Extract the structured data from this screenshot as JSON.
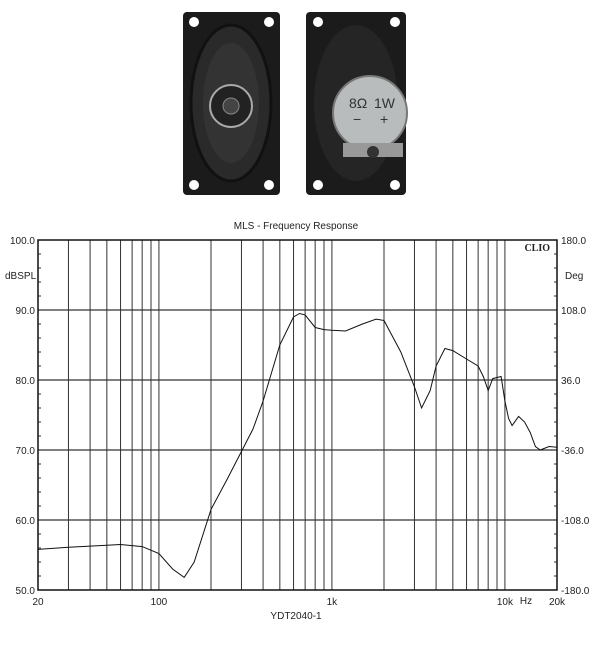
{
  "photo": {
    "label_impedance": "8Ω",
    "label_power": "1W",
    "label_minus": "−",
    "label_plus": "+"
  },
  "chart_data": {
    "type": "line",
    "title": "MLS - Frequency Response",
    "xlabel": "YDT2040-1",
    "x_unit": "Hz",
    "ylabel": "dBSPL",
    "y2label": "Deg",
    "brand": "CLIO",
    "xscale": "log",
    "xlim": [
      20,
      20000
    ],
    "ylim": [
      50,
      100
    ],
    "y2lim": [
      -180,
      180
    ],
    "grid": true,
    "xticks": [
      {
        "v": 20,
        "label": "20"
      },
      {
        "v": 100,
        "label": "100"
      },
      {
        "v": 1000,
        "label": "1k"
      },
      {
        "v": 10000,
        "label": "10k"
      },
      {
        "v": 20000,
        "label": "20k"
      }
    ],
    "yticks": [
      "50.0",
      "60.0",
      "70.0",
      "80.0",
      "90.0",
      "100.0"
    ],
    "y2ticks": [
      "-180.0",
      "-108.0",
      "-36.0",
      "36.0",
      "108.0",
      "180.0"
    ],
    "series": [
      {
        "x": [
          20,
          30,
          50,
          60,
          80,
          100,
          120,
          140,
          160,
          200,
          250,
          300,
          350,
          400,
          500,
          600,
          650,
          700,
          800,
          900,
          1000,
          1200,
          1500,
          1800,
          2000,
          2500,
          3000,
          3300,
          3700,
          4000,
          4500,
          5000,
          6000,
          7000,
          7500,
          8000,
          8500,
          9500,
          10000,
          10500,
          11000,
          12000,
          13000,
          14000,
          15000,
          16000,
          18000,
          20000
        ],
        "y": [
          55.8,
          56.1,
          56.4,
          56.5,
          56.2,
          55.2,
          53,
          51.8,
          54,
          61.5,
          66,
          69.8,
          73,
          77,
          85,
          89,
          89.5,
          89.3,
          87.5,
          87.2,
          87.1,
          87,
          88,
          88.7,
          88.5,
          84,
          79,
          76,
          78.5,
          82,
          84.5,
          84.2,
          83,
          82,
          80.5,
          78.5,
          80.2,
          80.5,
          77,
          74.5,
          73.5,
          74.8,
          74,
          72.5,
          70.5,
          70,
          70.5,
          70.4
        ]
      }
    ]
  }
}
